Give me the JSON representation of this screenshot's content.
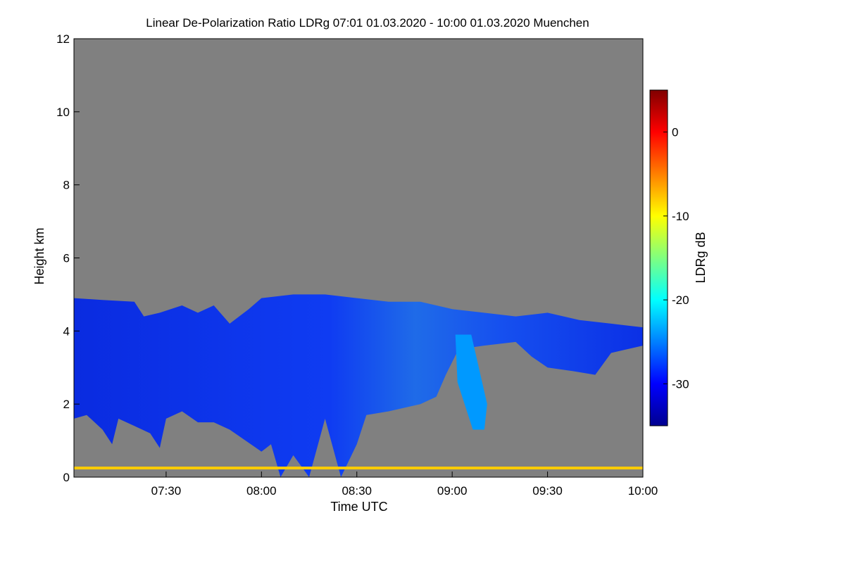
{
  "chart_data": {
    "type": "heatmap",
    "title": "Linear De-Polarization Ratio LDRg   07:01 01.03.2020 - 10:00 01.03.2020 Muenchen",
    "xlabel": "Time UTC",
    "ylabel": "Height km",
    "colorbar_label": "LDRg dB",
    "x_range_minutes_utc": [
      421,
      600
    ],
    "x_ticks": [
      {
        "label": "07:30",
        "value": 450
      },
      {
        "label": "08:00",
        "value": 480
      },
      {
        "label": "08:30",
        "value": 510
      },
      {
        "label": "09:00",
        "value": 540
      },
      {
        "label": "09:30",
        "value": 570
      },
      {
        "label": "10:00",
        "value": 600
      }
    ],
    "ylim": [
      0,
      12
    ],
    "y_ticks": [
      0,
      2,
      4,
      6,
      8,
      10,
      12
    ],
    "colorbar_range": [
      -35,
      5
    ],
    "colorbar_ticks": [
      -30,
      -20,
      -10,
      0
    ],
    "colormap": "jet",
    "background_color": "#808080",
    "cloud_top_km": [
      [
        421,
        4.9
      ],
      [
        430,
        4.85
      ],
      [
        440,
        4.8
      ],
      [
        443,
        4.4
      ],
      [
        448,
        4.5
      ],
      [
        455,
        4.7
      ],
      [
        460,
        4.5
      ],
      [
        465,
        4.7
      ],
      [
        470,
        4.2
      ],
      [
        476,
        4.6
      ],
      [
        480,
        4.9
      ],
      [
        490,
        5.0
      ],
      [
        500,
        5.0
      ],
      [
        510,
        4.9
      ],
      [
        520,
        4.8
      ],
      [
        530,
        4.8
      ],
      [
        540,
        4.6
      ],
      [
        550,
        4.5
      ],
      [
        560,
        4.4
      ],
      [
        570,
        4.5
      ],
      [
        580,
        4.3
      ],
      [
        590,
        4.2
      ],
      [
        600,
        4.1
      ]
    ],
    "cloud_base_km": [
      [
        421,
        1.6
      ],
      [
        425,
        1.7
      ],
      [
        430,
        1.3
      ],
      [
        433,
        0.9
      ],
      [
        435,
        1.6
      ],
      [
        440,
        1.4
      ],
      [
        445,
        1.2
      ],
      [
        448,
        0.8
      ],
      [
        450,
        1.6
      ],
      [
        455,
        1.8
      ],
      [
        460,
        1.5
      ],
      [
        465,
        1.5
      ],
      [
        470,
        1.3
      ],
      [
        475,
        1.0
      ],
      [
        480,
        0.7
      ],
      [
        483,
        0.9
      ],
      [
        486,
        0.0
      ],
      [
        490,
        0.6
      ],
      [
        495,
        0.0
      ],
      [
        500,
        1.6
      ],
      [
        505,
        0.0
      ],
      [
        510,
        0.9
      ],
      [
        513,
        1.7
      ],
      [
        520,
        1.8
      ],
      [
        530,
        2.0
      ],
      [
        535,
        2.2
      ],
      [
        538,
        2.8
      ],
      [
        542,
        3.5
      ],
      [
        550,
        3.6
      ],
      [
        560,
        3.7
      ],
      [
        565,
        3.3
      ],
      [
        570,
        3.0
      ],
      [
        578,
        2.9
      ],
      [
        585,
        2.8
      ],
      [
        590,
        3.4
      ],
      [
        600,
        3.6
      ]
    ],
    "fallstreak": {
      "time_range_minutes": [
        541,
        551
      ],
      "height_range_km": [
        1.3,
        3.9
      ],
      "mean_ldr_db": -24
    },
    "near_ground_layer_km": 0.25,
    "near_ground_ldr_db": -8,
    "cloud_mean_ldr_db": -30
  }
}
